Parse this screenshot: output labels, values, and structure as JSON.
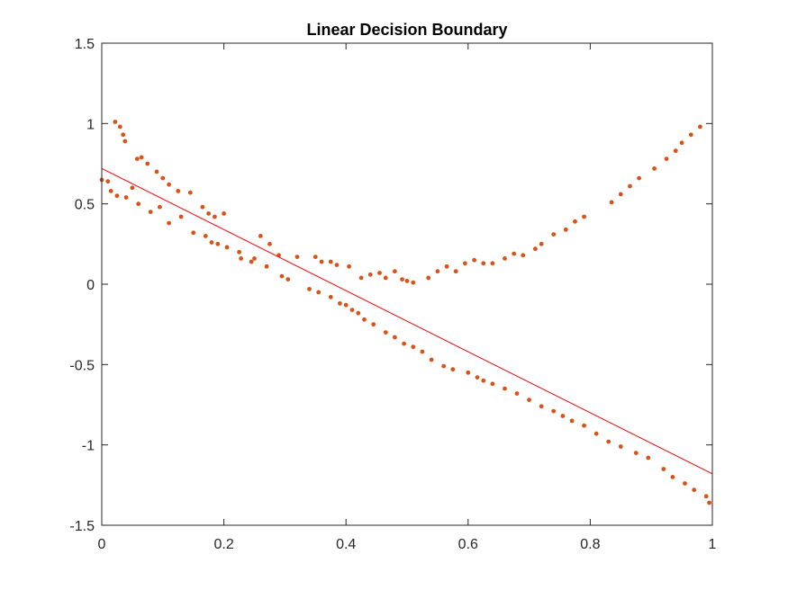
{
  "chart_data": {
    "type": "scatter",
    "title": "Linear Decision Boundary",
    "xlabel": "",
    "ylabel": "",
    "xlim": [
      0,
      1
    ],
    "ylim": [
      -1.5,
      1.5
    ],
    "xticks": [
      "0",
      "0.2",
      "0.4",
      "0.6",
      "0.8",
      "1"
    ],
    "yticks": [
      "-1.5",
      "-1",
      "-0.5",
      "0",
      "0.5",
      "1",
      "1.5"
    ],
    "grid": false,
    "legend": "none",
    "colors": {
      "points": "#d95319",
      "boundary": "#ff0000",
      "axes": "#262626"
    },
    "boundary_line": {
      "x": [
        0,
        1
      ],
      "y": [
        0.72,
        -1.18
      ]
    },
    "series": [
      {
        "x": [
          0.0,
          0.015,
          0.022,
          0.03,
          0.035,
          0.038,
          0.058,
          0.065,
          0.075,
          0.09,
          0.1,
          0.11,
          0.125,
          0.145,
          0.165,
          0.175,
          0.185,
          0.2,
          0.228,
          0.25,
          0.26,
          0.275,
          0.29,
          0.32,
          0.35,
          0.36,
          0.375,
          0.385,
          0.405,
          0.425,
          0.44,
          0.455,
          0.465,
          0.48,
          0.492,
          0.5,
          0.51,
          0.535,
          0.55,
          0.565,
          0.58,
          0.595,
          0.61,
          0.625,
          0.64,
          0.66,
          0.675,
          0.69,
          0.71,
          0.72,
          0.74,
          0.76,
          0.775,
          0.79,
          0.835,
          0.85,
          0.865,
          0.88,
          0.905,
          0.925,
          0.94,
          0.95,
          0.965,
          0.98
        ],
        "values": [
          0.65,
          0.58,
          1.01,
          0.98,
          0.93,
          0.89,
          0.78,
          0.79,
          0.75,
          0.7,
          0.66,
          0.62,
          0.58,
          0.57,
          0.48,
          0.44,
          0.42,
          0.44,
          0.16,
          0.16,
          0.3,
          0.25,
          0.18,
          0.17,
          0.17,
          0.14,
          0.14,
          0.12,
          0.11,
          0.04,
          0.06,
          0.07,
          0.04,
          0.08,
          0.03,
          0.02,
          0.01,
          0.04,
          0.08,
          0.11,
          0.08,
          0.13,
          0.15,
          0.13,
          0.13,
          0.16,
          0.19,
          0.18,
          0.22,
          0.25,
          0.31,
          0.34,
          0.39,
          0.42,
          0.51,
          0.56,
          0.61,
          0.66,
          0.72,
          0.78,
          0.83,
          0.88,
          0.93,
          0.98
        ]
      },
      {
        "x": [
          0.01,
          0.025,
          0.04,
          0.05,
          0.06,
          0.08,
          0.095,
          0.11,
          0.13,
          0.15,
          0.17,
          0.18,
          0.19,
          0.205,
          0.225,
          0.245,
          0.27,
          0.295,
          0.305,
          0.34,
          0.355,
          0.375,
          0.39,
          0.4,
          0.41,
          0.42,
          0.43,
          0.445,
          0.465,
          0.48,
          0.495,
          0.51,
          0.525,
          0.54,
          0.56,
          0.575,
          0.6,
          0.615,
          0.625,
          0.64,
          0.66,
          0.68,
          0.7,
          0.72,
          0.74,
          0.755,
          0.77,
          0.79,
          0.81,
          0.83,
          0.85,
          0.875,
          0.895,
          0.92,
          0.935,
          0.955,
          0.97,
          0.99,
          0.995
        ],
        "values": [
          0.64,
          0.55,
          0.54,
          0.6,
          0.5,
          0.45,
          0.48,
          0.38,
          0.42,
          0.32,
          0.3,
          0.26,
          0.25,
          0.23,
          0.2,
          0.14,
          0.11,
          0.05,
          0.03,
          -0.03,
          -0.05,
          -0.08,
          -0.12,
          -0.13,
          -0.16,
          -0.18,
          -0.22,
          -0.25,
          -0.3,
          -0.33,
          -0.37,
          -0.39,
          -0.42,
          -0.47,
          -0.51,
          -0.53,
          -0.55,
          -0.58,
          -0.6,
          -0.62,
          -0.65,
          -0.68,
          -0.72,
          -0.76,
          -0.79,
          -0.82,
          -0.85,
          -0.88,
          -0.93,
          -0.98,
          -1.01,
          -1.05,
          -1.08,
          -1.15,
          -1.2,
          -1.24,
          -1.28,
          -1.32,
          -1.36
        ]
      }
    ]
  }
}
